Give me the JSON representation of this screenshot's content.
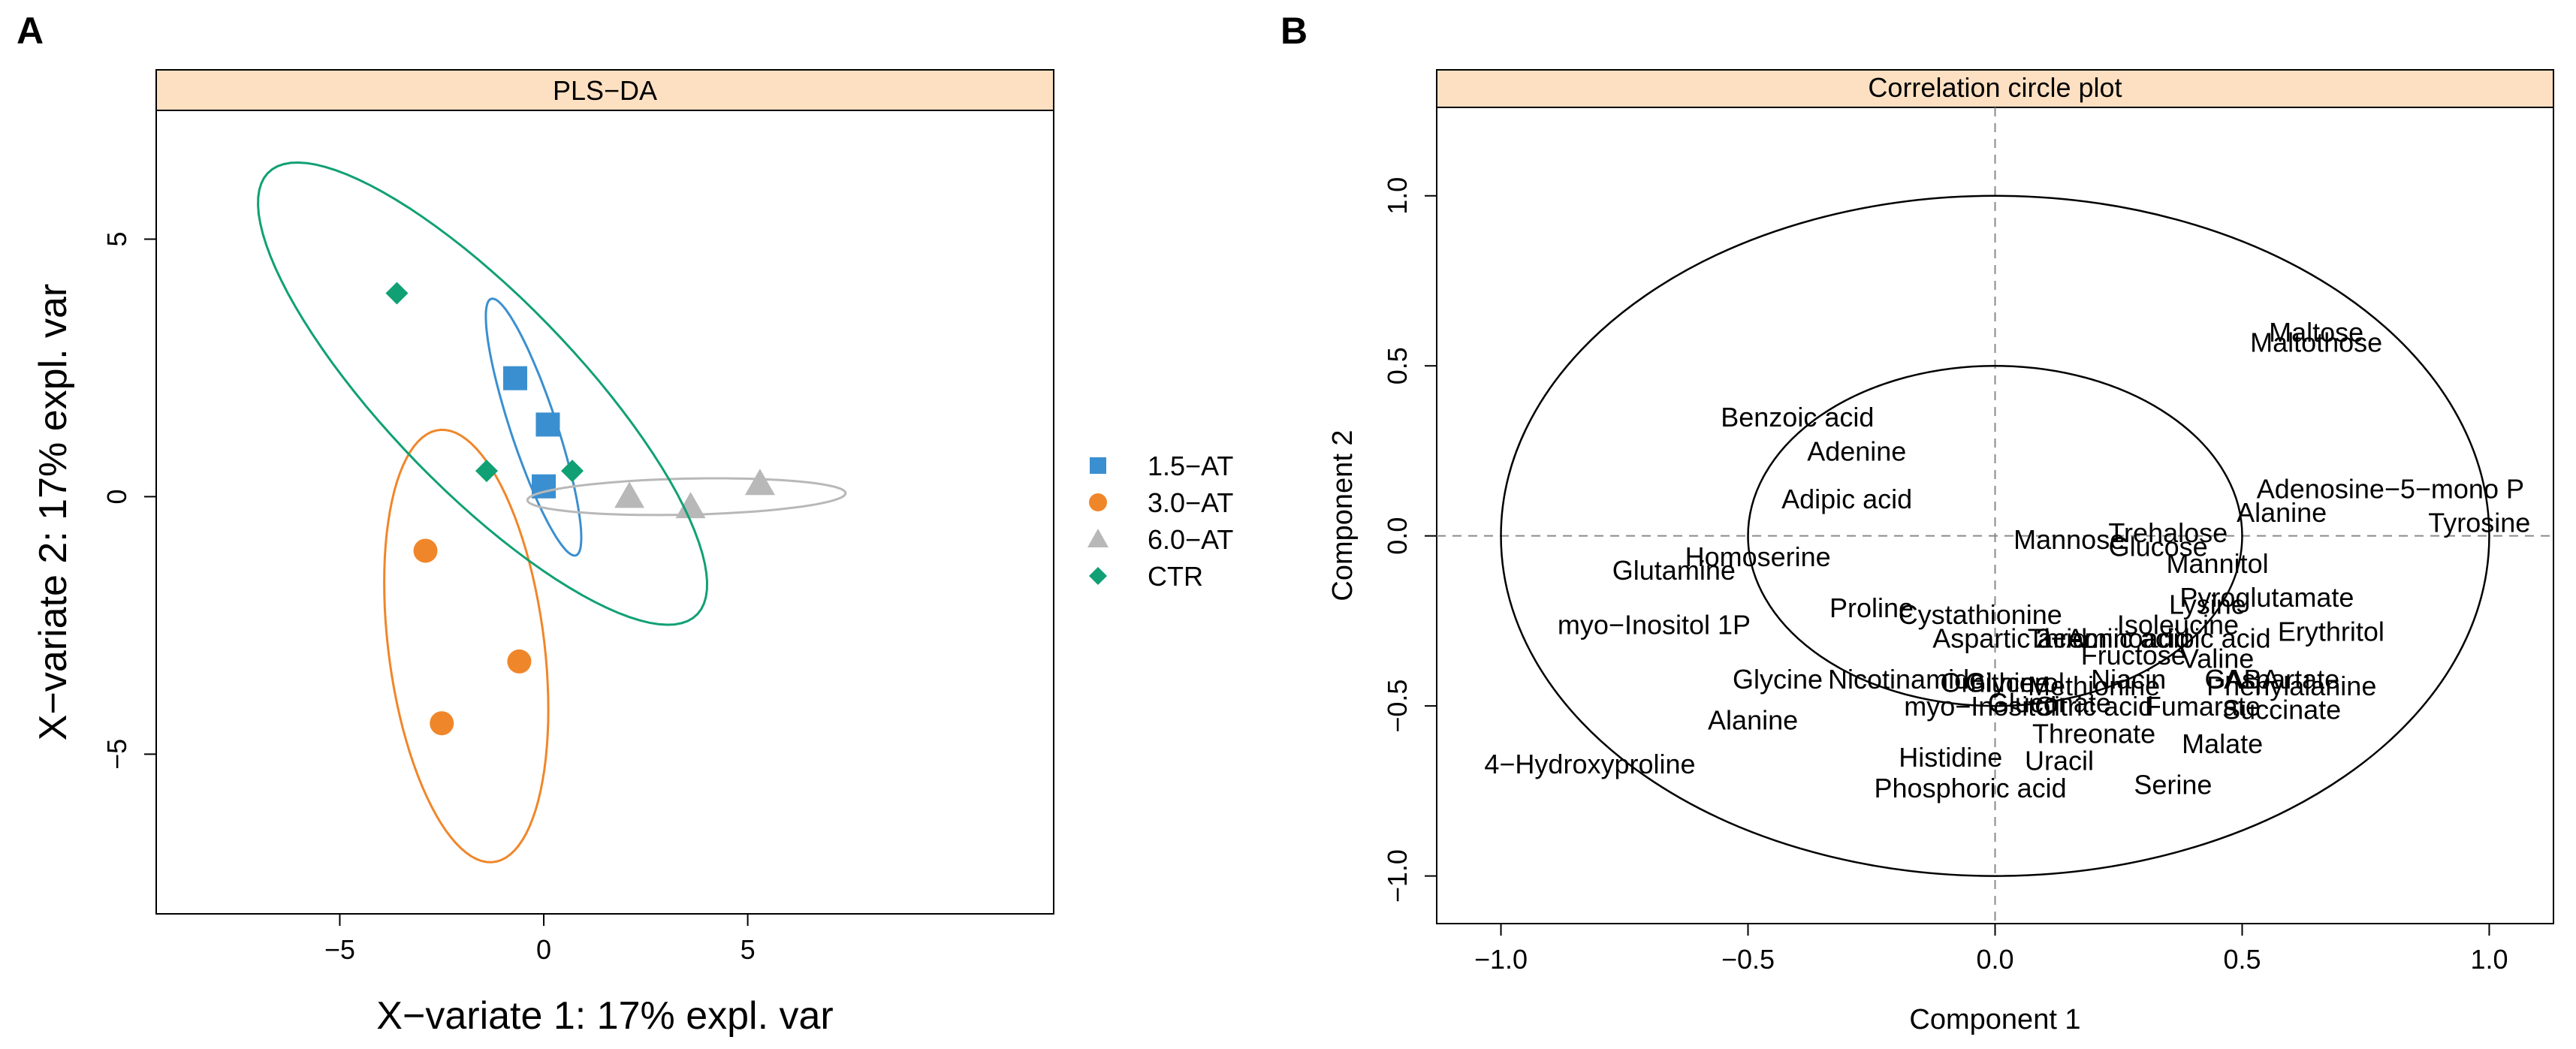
{
  "panel_labels": {
    "a": "A",
    "b": "B"
  },
  "chart_data": [
    {
      "type": "scatter",
      "title": "PLS−DA",
      "xlabel": "X−variate 1: 17% expl. var",
      "ylabel": "X−variate 2: 17% expl. var",
      "xlim": [
        -9.5,
        12.5
      ],
      "ylim": [
        -8.1,
        7.5
      ],
      "x_ticks": [
        -5,
        0,
        5
      ],
      "y_ticks": [
        -5,
        0,
        5
      ],
      "x_tick_labels": [
        "−5",
        "0",
        "5"
      ],
      "y_tick_labels": [
        "−5",
        "0",
        "5"
      ],
      "legend_position": "right",
      "series": [
        {
          "name": "1.5−AT",
          "color": "#3a8fd0",
          "marker": "square",
          "points": [
            [
              -0.7,
              2.3
            ],
            [
              0.1,
              1.4
            ],
            [
              0.0,
              0.2
            ]
          ],
          "ellipse": {
            "cx": -0.25,
            "cy": 1.35,
            "rx": 2.7,
            "ry": 0.55,
            "angle_deg": -67
          }
        },
        {
          "name": "3.0−AT",
          "color": "#f0862a",
          "marker": "circle",
          "points": [
            [
              -2.9,
              -1.05
            ],
            [
              -0.6,
              -3.2
            ],
            [
              -2.5,
              -4.4
            ]
          ],
          "ellipse": {
            "cx": -1.9,
            "cy": -2.9,
            "rx": 4.25,
            "ry": 1.9,
            "angle_deg": -80
          }
        },
        {
          "name": "6.0−AT",
          "color": "#b8b8b8",
          "marker": "triangle",
          "points": [
            [
              2.1,
              0.0
            ],
            [
              3.6,
              -0.2
            ],
            [
              5.3,
              0.25
            ]
          ],
          "ellipse": {
            "cx": 3.5,
            "cy": 0.0,
            "rx": 3.9,
            "ry": 0.35,
            "angle_deg": 1
          }
        },
        {
          "name": "CTR",
          "color": "#10a074",
          "marker": "diamond",
          "points": [
            [
              -3.6,
              3.95
            ],
            [
              -1.4,
              0.5
            ],
            [
              0.7,
              0.5
            ]
          ],
          "ellipse": {
            "cx": -1.5,
            "cy": 2.0,
            "rx": 6.8,
            "ry": 2.05,
            "angle_deg": -38
          }
        }
      ]
    },
    {
      "type": "scatter",
      "title": "Correlation circle plot",
      "xlabel": "Component  1",
      "ylabel": "Component  2",
      "xlim": [
        -1.13,
        1.13
      ],
      "ylim": [
        -1.14,
        1.26
      ],
      "x_ticks": [
        -1.0,
        -0.5,
        0.0,
        0.5,
        1.0
      ],
      "y_ticks": [
        -1.0,
        -0.5,
        0.0,
        0.5,
        1.0
      ],
      "x_tick_labels": [
        "−1.0",
        "−0.5",
        "0.0",
        "0.5",
        "1.0"
      ],
      "y_tick_labels": [
        "−1.0",
        "−0.5",
        "0.0",
        "0.5",
        "1.0"
      ],
      "circles_radius": [
        1.0,
        0.5
      ],
      "reference_lines": [
        0,
        0
      ],
      "variables": [
        {
          "name": "Maltose",
          "x": 0.65,
          "y": 0.6
        },
        {
          "name": "Maltothose",
          "x": 0.65,
          "y": 0.57
        },
        {
          "name": "Benzoic acid",
          "x": -0.4,
          "y": 0.35
        },
        {
          "name": "Adenine",
          "x": -0.28,
          "y": 0.25
        },
        {
          "name": "Adenosine−5−mono P",
          "x": 0.8,
          "y": 0.14
        },
        {
          "name": "Adipic acid",
          "x": -0.3,
          "y": 0.11
        },
        {
          "name": "Alanine",
          "x": 0.58,
          "y": 0.07
        },
        {
          "name": "Tyrosine",
          "x": 0.98,
          "y": 0.04
        },
        {
          "name": "Trehalose",
          "x": 0.35,
          "y": 0.01
        },
        {
          "name": "Mannose",
          "x": 0.15,
          "y": -0.01
        },
        {
          "name": "Glucose",
          "x": 0.33,
          "y": -0.03
        },
        {
          "name": "Homoserine",
          "x": -0.48,
          "y": -0.06
        },
        {
          "name": "Glutamine",
          "x": -0.65,
          "y": -0.1
        },
        {
          "name": "Mannitol",
          "x": 0.45,
          "y": -0.08
        },
        {
          "name": "Pyroglutamate",
          "x": 0.55,
          "y": -0.18
        },
        {
          "name": "Lysine",
          "x": 0.43,
          "y": -0.2
        },
        {
          "name": "Proline",
          "x": -0.25,
          "y": -0.21
        },
        {
          "name": "Cystathionine",
          "x": -0.03,
          "y": -0.23
        },
        {
          "name": "Isoleucine",
          "x": 0.37,
          "y": -0.26
        },
        {
          "name": "Erythritol",
          "x": 0.68,
          "y": -0.28
        },
        {
          "name": "myo−Inositol 1P",
          "x": -0.69,
          "y": -0.26
        },
        {
          "name": "Aspartic acid",
          "x": 0.03,
          "y": -0.3
        },
        {
          "name": "2−Aminoadipic acid",
          "x": 0.32,
          "y": -0.3
        },
        {
          "name": "Threonic acid",
          "x": 0.23,
          "y": -0.3
        },
        {
          "name": "Fructose",
          "x": 0.28,
          "y": -0.35
        },
        {
          "name": "Valine",
          "x": 0.45,
          "y": -0.36
        },
        {
          "name": "Glycine",
          "x": -0.44,
          "y": -0.42
        },
        {
          "name": "Nicotinamide",
          "x": -0.18,
          "y": -0.42
        },
        {
          "name": "Ornithine",
          "x": 0.0,
          "y": -0.43
        },
        {
          "name": "Glycerol",
          "x": 0.04,
          "y": -0.43
        },
        {
          "name": "Niacin",
          "x": 0.27,
          "y": -0.42
        },
        {
          "name": "Methionine",
          "x": 0.2,
          "y": -0.44
        },
        {
          "name": "Aspartate",
          "x": 0.58,
          "y": -0.42
        },
        {
          "name": "Phenylalanine",
          "x": 0.6,
          "y": -0.44
        },
        {
          "name": "GABA",
          "x": 0.5,
          "y": -0.42
        },
        {
          "name": "myo−Inositol",
          "x": -0.03,
          "y": -0.5
        },
        {
          "name": "Gluconate",
          "x": 0.11,
          "y": -0.49
        },
        {
          "name": "Citric acid",
          "x": 0.2,
          "y": -0.5
        },
        {
          "name": "Succinate",
          "x": 0.58,
          "y": -0.51
        },
        {
          "name": "Fumarate",
          "x": 0.42,
          "y": -0.5
        },
        {
          "name": "Alanine",
          "x": -0.49,
          "y": -0.54
        },
        {
          "name": "Threonate",
          "x": 0.2,
          "y": -0.58
        },
        {
          "name": "Malate",
          "x": 0.46,
          "y": -0.61
        },
        {
          "name": "Histidine",
          "x": -0.09,
          "y": -0.65
        },
        {
          "name": "Uracil",
          "x": 0.13,
          "y": -0.66
        },
        {
          "name": "4−Hydroxyproline",
          "x": -0.82,
          "y": -0.67
        },
        {
          "name": "Serine",
          "x": 0.36,
          "y": -0.73
        },
        {
          "name": "Phosphoric acid",
          "x": -0.05,
          "y": -0.74
        }
      ]
    }
  ]
}
